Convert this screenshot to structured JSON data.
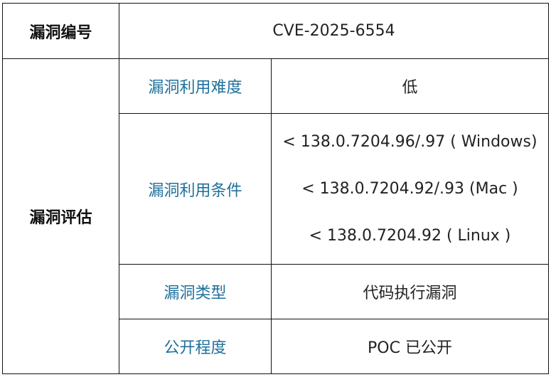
{
  "vuln_id": {
    "label": "漏洞编号",
    "value": "CVE-2025-6554"
  },
  "assessment": {
    "label": "漏洞评估",
    "rows": [
      {
        "label": "漏洞利用难度",
        "value": "低"
      },
      {
        "label": "漏洞利用条件",
        "values": [
          "< 138.0.7204.96/.97 ( Windows)",
          "< 138.0.7204.92/.93 (Mac )",
          "< 138.0.7204.92 ( Linux )"
        ]
      },
      {
        "label": "漏洞类型",
        "value": "代码执行漏洞"
      },
      {
        "label": "公开程度",
        "value": "POC 已公开"
      }
    ]
  },
  "colors": {
    "label_blue": "#1e6f9c",
    "border": "#111111"
  }
}
